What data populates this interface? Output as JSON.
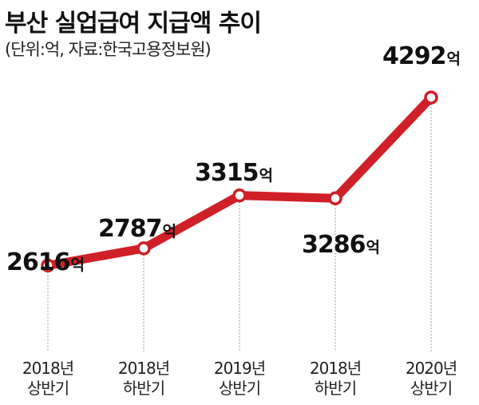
{
  "title": "부산 실업급여 지급액 추이",
  "subtitle": "(단위:억, 자료:한국고용정보원)",
  "colors": {
    "line": "#cf2027",
    "marker_fill": "#ffffff",
    "guide": "#999999"
  },
  "chart_data": {
    "type": "line",
    "title": "부산 실업급여 지급액 추이",
    "unit": "억",
    "categories": [
      [
        "2018년",
        "상반기"
      ],
      [
        "2018년",
        "하반기"
      ],
      [
        "2019년",
        "상반기"
      ],
      [
        "2018년",
        "하반기"
      ],
      [
        "2020년",
        "상반기"
      ]
    ],
    "series": [
      {
        "values": [
          2616,
          2787,
          3315,
          3286,
          4292
        ]
      }
    ],
    "data_labels": [
      "2616",
      "2787",
      "3315",
      "3286",
      "4292"
    ],
    "ylim": [
      2300,
      4500
    ],
    "grid": false,
    "legend": "none"
  }
}
